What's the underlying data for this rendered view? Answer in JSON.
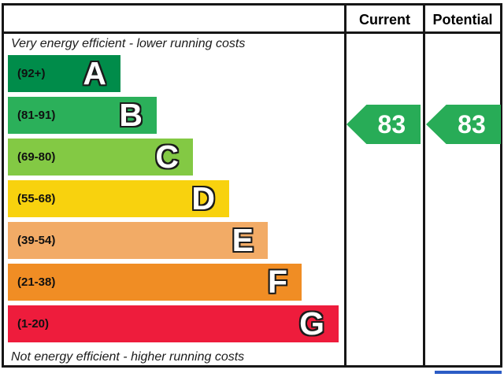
{
  "header": {
    "current_label": "Current",
    "potential_label": "Potential"
  },
  "captions": {
    "top": "Very energy efficient - lower running costs",
    "bottom": "Not energy efficient - higher running costs"
  },
  "chart_data": {
    "type": "bar",
    "orientation": "horizontal",
    "description": "Energy efficiency rating bands A-G with current and potential rating arrows",
    "bands": [
      {
        "letter": "A",
        "range": "(92+)",
        "color": "#008c4a"
      },
      {
        "letter": "B",
        "range": "(81-91)",
        "color": "#2bb05a"
      },
      {
        "letter": "C",
        "range": "(69-80)",
        "color": "#83c944"
      },
      {
        "letter": "D",
        "range": "(55-68)",
        "color": "#f8d20e"
      },
      {
        "letter": "E",
        "range": "(39-54)",
        "color": "#f2ab66"
      },
      {
        "letter": "F",
        "range": "(21-38)",
        "color": "#f08d24"
      },
      {
        "letter": "G",
        "range": "(1-20)",
        "color": "#ee1c3c"
      }
    ],
    "ratings": {
      "current": 83,
      "potential": 83
    },
    "arrow_color": "#28ac57",
    "cropped_bar_color": "#2c5cc5"
  }
}
